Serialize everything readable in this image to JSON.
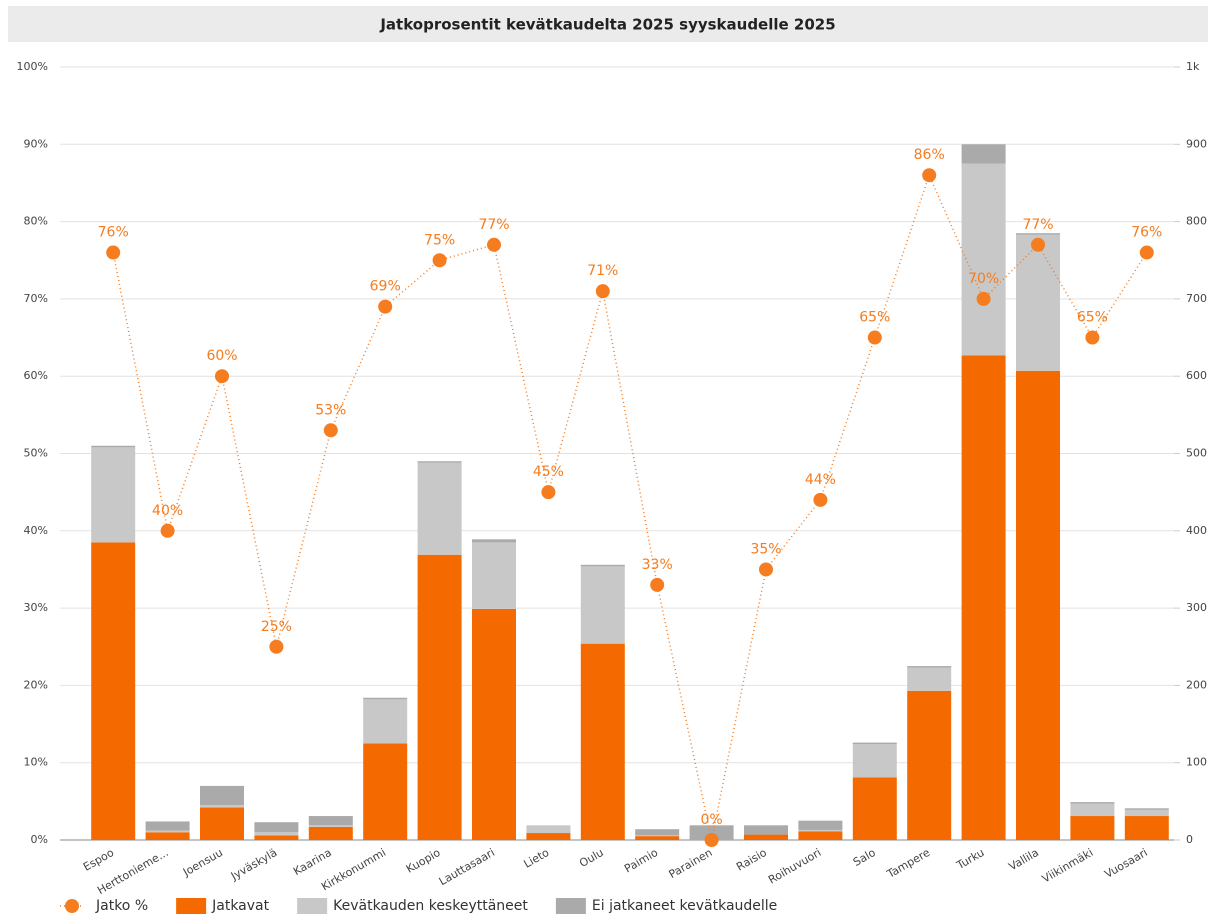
{
  "chart_data": {
    "type": "bar",
    "stacked": true,
    "title": "Jatkoprosentit kevätkaudelta 2025 syyskaudelle 2025",
    "categories": [
      "Espoo",
      "Herttonieme...",
      "Joensuu",
      "Jyväskylä",
      "Kaarina",
      "Kirkkonummi",
      "Kuopio",
      "Lauttasaari",
      "Lieto",
      "Oulu",
      "Paimio",
      "Parainen",
      "Raisio",
      "Roihuvuori",
      "Salo",
      "Tampere",
      "Turku",
      "Vallila",
      "Viikinmäki",
      "Vuosaari"
    ],
    "series": [
      {
        "name": "Jatko %",
        "type": "line",
        "axis": "y",
        "color": "#f57c1f",
        "values": [
          76,
          40,
          60,
          25,
          53,
          69,
          75,
          77,
          45,
          71,
          33,
          0,
          35,
          44,
          65,
          86,
          70,
          77,
          65,
          76
        ],
        "value_labels": [
          "76%",
          "40%",
          "60%",
          "25%",
          "53%",
          "69%",
          "75%",
          "77%",
          "45%",
          "71%",
          "33%",
          "0%",
          "35%",
          "44%",
          "65%",
          "86%",
          "70%",
          "77%",
          "65%",
          "76%"
        ]
      },
      {
        "name": "Jatkavat",
        "type": "bar",
        "axis": "y2",
        "color": "#f56a00",
        "values": [
          385,
          10,
          42,
          6,
          17,
          125,
          369,
          299,
          9,
          254,
          5,
          0,
          7,
          11,
          81,
          193,
          627,
          607,
          31,
          31
        ]
      },
      {
        "name": "Kevätkauden keskeyttäneet",
        "type": "bar",
        "axis": "y2",
        "color": "#c8c8c8",
        "values": [
          123,
          2,
          3,
          4,
          2,
          57,
          119,
          86,
          10,
          100,
          1,
          0,
          0,
          2,
          43,
          30,
          248,
          176,
          16,
          8
        ]
      },
      {
        "name": "Ei jatkaneet kevätkaudelle",
        "type": "bar",
        "axis": "y2",
        "color": "#aaaaaa",
        "values": [
          2,
          12,
          25,
          13,
          12,
          2,
          2,
          4,
          0,
          2,
          8,
          19,
          12,
          12,
          2,
          2,
          25,
          2,
          2,
          2
        ]
      }
    ],
    "ylim": [
      0,
      100
    ],
    "yticks": [
      {
        "value": 0,
        "label": "0%"
      },
      {
        "value": 10,
        "label": "10%"
      },
      {
        "value": 20,
        "label": "20%"
      },
      {
        "value": 30,
        "label": "30%"
      },
      {
        "value": 40,
        "label": "40%"
      },
      {
        "value": 50,
        "label": "50%"
      },
      {
        "value": 60,
        "label": "60%"
      },
      {
        "value": 70,
        "label": "70%"
      },
      {
        "value": 80,
        "label": "80%"
      },
      {
        "value": 90,
        "label": "90%"
      },
      {
        "value": 100,
        "label": "100%"
      }
    ],
    "y2lim": [
      0,
      1000
    ],
    "y2ticks": [
      0,
      100,
      200,
      300,
      400,
      500,
      600,
      700,
      800,
      900,
      {
        "value": 1000,
        "label": "1k"
      }
    ],
    "grid": true
  }
}
